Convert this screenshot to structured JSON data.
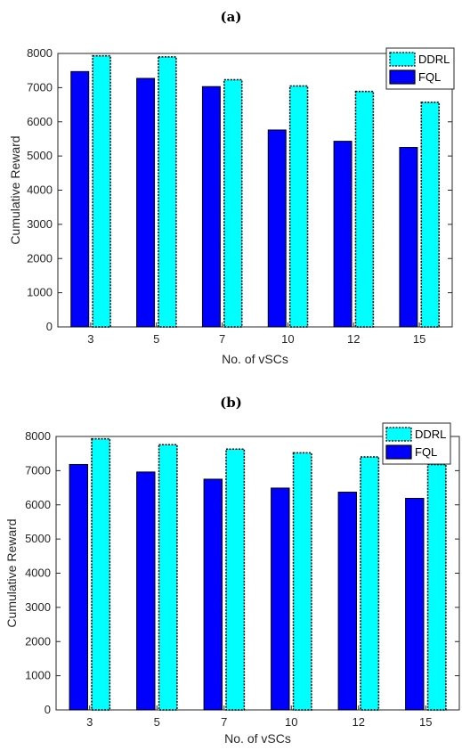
{
  "charts": [
    {
      "panel_label": "(a)",
      "chart_data": {
        "type": "bar",
        "categories": [
          "3",
          "5",
          "7",
          "10",
          "12",
          "15"
        ],
        "series": [
          {
            "name": "FQL",
            "values": [
              7470,
              7270,
              7030,
              5760,
              5430,
              5250
            ]
          },
          {
            "name": "DDRL",
            "values": [
              7930,
              7900,
              7230,
              7050,
              6890,
              6570
            ]
          }
        ],
        "xlabel": "No. of vSCs",
        "ylabel": "Cumulative Reward",
        "ylim": [
          0,
          8000
        ],
        "yticks": [
          0,
          1000,
          2000,
          3000,
          4000,
          5000,
          6000,
          7000,
          8000
        ],
        "legend": [
          "DDRL",
          "FQL"
        ],
        "legend_position": "top-right",
        "grid": false
      }
    },
    {
      "panel_label": "(b)",
      "chart_data": {
        "type": "bar",
        "categories": [
          "3",
          "5",
          "7",
          "10",
          "12",
          "15"
        ],
        "series": [
          {
            "name": "FQL",
            "values": [
              7180,
              6960,
              6750,
              6490,
              6370,
              6190
            ]
          },
          {
            "name": "DDRL",
            "values": [
              7930,
              7760,
              7630,
              7520,
              7400,
              7180
            ]
          }
        ],
        "xlabel": "No. of vSCs",
        "ylabel": "Cumulative Reward",
        "ylim": [
          0,
          8000
        ],
        "yticks": [
          0,
          1000,
          2000,
          3000,
          4000,
          5000,
          6000,
          7000,
          8000
        ],
        "legend": [
          "DDRL",
          "FQL"
        ],
        "legend_position": "top-right",
        "grid": false
      }
    }
  ],
  "colors": {
    "FQL": "#0000ff",
    "DDRL": "#00ffff"
  }
}
